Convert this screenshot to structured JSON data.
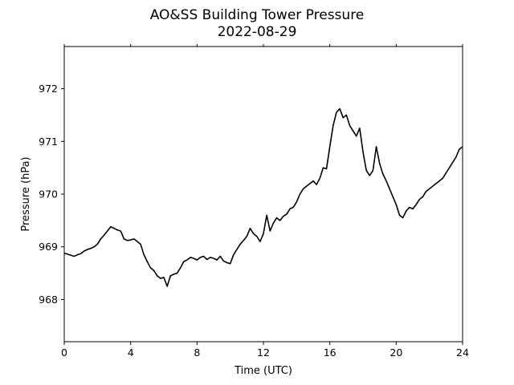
{
  "chart_data": {
    "type": "line",
    "title": "AO&SS Building Tower Pressure",
    "subtitle": "2022-08-29",
    "xlabel": "Time (UTC)",
    "ylabel": "Pressure (hPa)",
    "xlim": [
      0,
      24
    ],
    "ylim": [
      967.2,
      972.8
    ],
    "xticks": [
      0,
      4,
      8,
      12,
      16,
      20,
      24
    ],
    "xtick_labels": [
      "0",
      "4",
      "8",
      "12",
      "16",
      "20",
      "24"
    ],
    "yticks": [
      968,
      969,
      970,
      971,
      972
    ],
    "ytick_labels": [
      "968",
      "969",
      "970",
      "971",
      "972"
    ],
    "grid": false,
    "line_color": "#000000",
    "series": [
      {
        "x": [
          0.0,
          0.2,
          0.4,
          0.6,
          0.8,
          1.0,
          1.2,
          1.4,
          1.6,
          1.8,
          2.0,
          2.2,
          2.4,
          2.6,
          2.8,
          3.0,
          3.2,
          3.4,
          3.6,
          3.8,
          4.0,
          4.2,
          4.4,
          4.6,
          4.8,
          5.0,
          5.2,
          5.4,
          5.6,
          5.8,
          6.0,
          6.2,
          6.4,
          6.6,
          6.8,
          7.0,
          7.2,
          7.4,
          7.6,
          7.8,
          8.0,
          8.2,
          8.4,
          8.6,
          8.8,
          9.0,
          9.2,
          9.4,
          9.6,
          9.8,
          10.0,
          10.2,
          10.4,
          10.6,
          10.8,
          11.0,
          11.2,
          11.4,
          11.6,
          11.8,
          12.0,
          12.2,
          12.4,
          12.6,
          12.8,
          13.0,
          13.2,
          13.4,
          13.6,
          13.8,
          14.0,
          14.2,
          14.4,
          14.6,
          14.8,
          15.0,
          15.2,
          15.4,
          15.6,
          15.8,
          16.0,
          16.2,
          16.4,
          16.6,
          16.8,
          17.0,
          17.2,
          17.4,
          17.6,
          17.8,
          18.0,
          18.2,
          18.4,
          18.6,
          18.8,
          19.0,
          19.2,
          19.4,
          19.6,
          19.8,
          20.0,
          20.2,
          20.4,
          20.6,
          20.8,
          21.0,
          21.2,
          21.4,
          21.6,
          21.8,
          22.0,
          22.2,
          22.4,
          22.6,
          22.8,
          23.0,
          23.2,
          23.4,
          23.6,
          23.8,
          24.0
        ],
        "y": [
          968.88,
          968.86,
          968.84,
          968.82,
          968.85,
          968.87,
          968.92,
          968.95,
          968.97,
          969.0,
          969.05,
          969.15,
          969.22,
          969.3,
          969.38,
          969.35,
          969.32,
          969.3,
          969.15,
          969.12,
          969.13,
          969.15,
          969.1,
          969.05,
          968.85,
          968.72,
          968.6,
          968.55,
          968.45,
          968.4,
          968.42,
          968.25,
          968.45,
          968.48,
          968.5,
          968.6,
          968.72,
          968.75,
          968.8,
          968.78,
          968.75,
          968.8,
          968.82,
          968.76,
          968.8,
          968.78,
          968.75,
          968.82,
          968.73,
          968.7,
          968.68,
          968.85,
          968.95,
          969.05,
          969.12,
          969.2,
          969.35,
          969.25,
          969.2,
          969.1,
          969.25,
          969.6,
          969.3,
          969.45,
          969.55,
          969.5,
          969.58,
          969.62,
          969.72,
          969.75,
          969.85,
          970.0,
          970.1,
          970.15,
          970.2,
          970.25,
          970.18,
          970.3,
          970.5,
          970.48,
          970.9,
          971.3,
          971.55,
          971.62,
          971.45,
          971.5,
          971.3,
          971.2,
          971.1,
          971.25,
          970.8,
          970.45,
          970.35,
          970.45,
          970.9,
          970.58,
          970.38,
          970.25,
          970.1,
          969.95,
          969.8,
          969.6,
          969.55,
          969.68,
          969.75,
          969.72,
          969.8,
          969.9,
          969.95,
          970.05,
          970.1,
          970.15,
          970.2,
          970.25,
          970.3,
          970.4,
          970.5,
          970.6,
          970.7,
          970.85,
          970.9
        ]
      }
    ]
  }
}
